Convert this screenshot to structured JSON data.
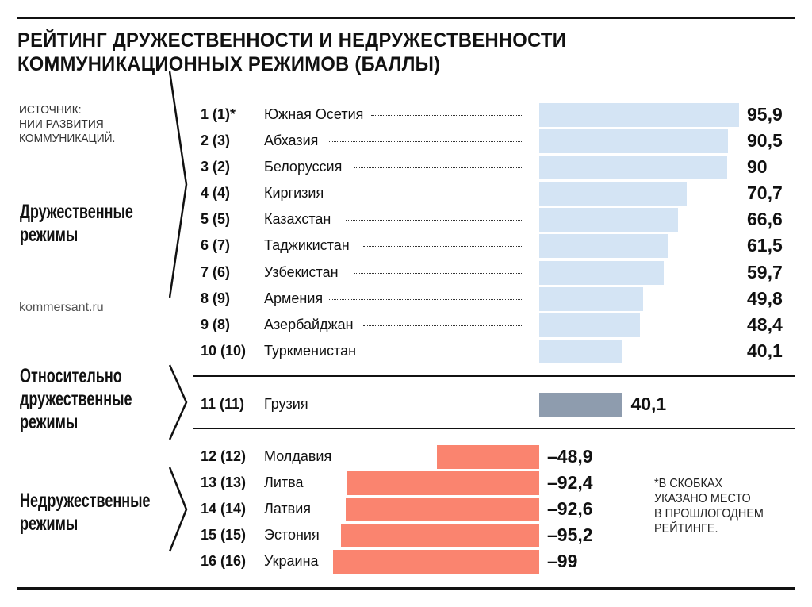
{
  "title_line1": "РЕЙТИНГ ДРУЖЕСТВЕННОСТИ И НЕДРУЖЕСТВЕННОСТИ",
  "title_line2": "КОММУНИКАЦИОННЫХ РЕЖИМОВ (БАЛЛЫ)",
  "source": "ИСТОЧНИК:\nНИИ РАЗВИТИЯ\nКОММУНИКАЦИЙ.",
  "site": "kommersant.ru",
  "footnote": "*В СКОБКАХ\n УКАЗАНО МЕСТО\n В ПРОШЛОГОДНЕМ\n РЕЙТИНГЕ.",
  "colors": {
    "friendly": "#d4e4f4",
    "relatively_friendly": "#8e9cae",
    "unfriendly": "#fa846f"
  },
  "chart_data": {
    "type": "bar",
    "orientation": "horizontal",
    "title": "РЕЙТИНГ ДРУЖЕСТВЕННОСТИ И НЕДРУЖЕСТВЕННОСТИ КОММУНИКАЦИОННЫХ РЕЖИМОВ (БАЛЛЫ)",
    "groups": [
      {
        "label": "Дружественные\nрежимы",
        "color_key": "friendly",
        "rows": [
          {
            "rank": "1 (1)*",
            "country": "Южная Осетия",
            "value": 95.9,
            "label": "95,9"
          },
          {
            "rank": "2 (3)",
            "country": "Абхазия",
            "value": 90.5,
            "label": "90,5"
          },
          {
            "rank": "3 (2)",
            "country": "Белоруссия",
            "value": 90,
            "label": "90"
          },
          {
            "rank": "4 (4)",
            "country": "Киргизия",
            "value": 70.7,
            "label": "70,7"
          },
          {
            "rank": "5 (5)",
            "country": "Казахстан",
            "value": 66.6,
            "label": "66,6"
          },
          {
            "rank": "6 (7)",
            "country": "Таджикистан",
            "value": 61.5,
            "label": "61,5"
          },
          {
            "rank": "7 (6)",
            "country": "Узбекистан",
            "value": 59.7,
            "label": "59,7"
          },
          {
            "rank": "8 (9)",
            "country": "Армения",
            "value": 49.8,
            "label": "49,8"
          },
          {
            "rank": "9 (8)",
            "country": "Азербайджан",
            "value": 48.4,
            "label": "48,4"
          },
          {
            "rank": "10 (10)",
            "country": "Туркменистан",
            "value": 40.1,
            "label": "40,1"
          }
        ]
      },
      {
        "label": "Относительно\nдружественные\nрежимы",
        "color_key": "relatively_friendly",
        "rows": [
          {
            "rank": "11 (11)",
            "country": "Грузия",
            "value": 40.1,
            "label": "40,1"
          }
        ]
      },
      {
        "label": "Недружественные\nрежимы",
        "color_key": "unfriendly",
        "rows": [
          {
            "rank": "12 (12)",
            "country": "Молдавия",
            "value": -48.9,
            "label": "–48,9"
          },
          {
            "rank": "13 (13)",
            "country": "Литва",
            "value": -92.4,
            "label": "–92,4"
          },
          {
            "rank": "14 (14)",
            "country": "Латвия",
            "value": -92.6,
            "label": "–92,6"
          },
          {
            "rank": "15 (15)",
            "country": "Эстония",
            "value": -95.2,
            "label": "–95,2"
          },
          {
            "rank": "16 (16)",
            "country": "Украина",
            "value": -99,
            "label": "–99"
          }
        ]
      }
    ]
  }
}
